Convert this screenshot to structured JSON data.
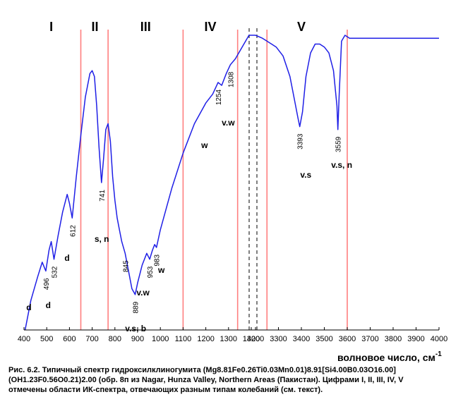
{
  "chart_data": {
    "type": "line",
    "xlabel": "волновое число, см",
    "xlabel_sup": "-1",
    "tick_labels": [
      "400",
      "500",
      "600",
      "700",
      "800",
      "900",
      "1000",
      "1100",
      "1200",
      "1300",
      "1400",
      "3200",
      "3300",
      "3400",
      "3500",
      "3600",
      "3700",
      "3800",
      "3900",
      "4000"
    ],
    "axis_break": {
      "from": 1400,
      "to": 3200
    },
    "series_color": "#1f1fe6",
    "region_line_color": "#ff7f7f",
    "region_boundaries": [
      650,
      770,
      1100,
      1340,
      3250,
      3600
    ],
    "regions": [
      {
        "label": "I",
        "at": 520
      },
      {
        "label": "II",
        "at": 712
      },
      {
        "label": "III",
        "at": 935
      },
      {
        "label": "IV",
        "at": 1220
      },
      {
        "label": "V",
        "at": 3400
      }
    ],
    "peak_labels": [
      {
        "text": "496",
        "x": 496
      },
      {
        "text": "532",
        "x": 532
      },
      {
        "text": "612",
        "x": 612
      },
      {
        "text": "741",
        "x": 741
      },
      {
        "text": "845",
        "x": 845
      },
      {
        "text": "889",
        "x": 889
      },
      {
        "text": "953",
        "x": 953
      },
      {
        "text": "983",
        "x": 983
      },
      {
        "text": "1254",
        "x": 1254
      },
      {
        "text": "1308",
        "x": 1308
      },
      {
        "text": "3393",
        "x": 3393
      },
      {
        "text": "3559",
        "x": 3559
      }
    ],
    "annotations": [
      {
        "text": "d",
        "x": 410
      },
      {
        "text": "d",
        "x": 495
      },
      {
        "text": "d",
        "x": 578
      },
      {
        "text": "s, n",
        "x": 710
      },
      {
        "text": "w",
        "x": 990
      },
      {
        "text": "v.w",
        "x": 895
      },
      {
        "text": "v.s, b",
        "x": 845
      },
      {
        "text": "w",
        "x": 1180
      },
      {
        "text": "v.w",
        "x": 1270
      },
      {
        "text": "v.s",
        "x": 3395
      },
      {
        "text": "v.s, n",
        "x": 3530
      }
    ],
    "x": [
      405,
      430,
      460,
      480,
      496,
      510,
      520,
      532,
      550,
      570,
      590,
      600,
      612,
      630,
      650,
      670,
      690,
      700,
      710,
      720,
      730,
      741,
      750,
      760,
      770,
      780,
      790,
      800,
      810,
      820,
      830,
      845,
      860,
      875,
      889,
      900,
      920,
      940,
      953,
      965,
      975,
      983,
      1000,
      1050,
      1100,
      1150,
      1200,
      1230,
      1254,
      1270,
      1290,
      1308,
      1330,
      1360,
      1390,
      1400,
      3200,
      3230,
      3250,
      3270,
      3290,
      3320,
      3350,
      3370,
      3385,
      3393,
      3405,
      3420,
      3440,
      3460,
      3480,
      3500,
      3520,
      3540,
      3555,
      3559,
      3565,
      3575,
      3590,
      3610,
      3650,
      3700,
      3750,
      3800,
      3850,
      3900,
      3950,
      4000
    ],
    "values": [
      0.0,
      0.1,
      0.18,
      0.23,
      0.2,
      0.27,
      0.3,
      0.24,
      0.32,
      0.4,
      0.46,
      0.43,
      0.38,
      0.52,
      0.66,
      0.79,
      0.87,
      0.88,
      0.86,
      0.76,
      0.62,
      0.5,
      0.58,
      0.68,
      0.7,
      0.64,
      0.52,
      0.44,
      0.38,
      0.34,
      0.3,
      0.26,
      0.2,
      0.14,
      0.12,
      0.16,
      0.22,
      0.26,
      0.24,
      0.27,
      0.29,
      0.28,
      0.34,
      0.48,
      0.6,
      0.7,
      0.77,
      0.8,
      0.84,
      0.83,
      0.87,
      0.9,
      0.92,
      0.96,
      1.0,
      1.0,
      1.0,
      0.99,
      0.98,
      0.97,
      0.96,
      0.93,
      0.86,
      0.78,
      0.72,
      0.69,
      0.74,
      0.86,
      0.94,
      0.97,
      0.97,
      0.96,
      0.94,
      0.88,
      0.76,
      0.68,
      0.8,
      0.98,
      1.0,
      0.99,
      0.99,
      0.99,
      0.99,
      0.99,
      0.99,
      0.99,
      0.99,
      0.99
    ]
  },
  "caption": {
    "line1": "Рис. 6.2. Типичный спектр гидроксилклиногумита (Mg8.81Fe0.26Ti0.03Mn0.01)8.91[Si4.00B0.03O16.00]",
    "line2": "(OH1.23F0.56O0.21)2.00 (обр. 8п из Nagar, Hunza Valley, Northern Areas (Пакистан). Цифрами I, II, III, IV, V",
    "line3": "отмечены области ИК-спектра, отвечающих разным типам колебаний (см. текст)."
  }
}
